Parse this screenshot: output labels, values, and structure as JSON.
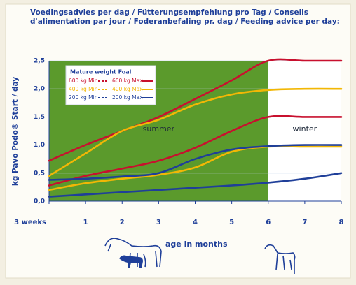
{
  "chart_data": {
    "type": "line",
    "title": "Voedingsadvies per dag / Fütterungsempfehlung pro Tag / Conseils",
    "subtitle": "d'alimentation par jour / Foderanbefaling pr. dag / Feeding advice per day:",
    "y_label": "kg Pavo Podo® Start / day",
    "x_label": "age in months",
    "legend_title": "Mature weight Foal",
    "categories": [
      "3 weeks",
      "1",
      "2",
      "3",
      "4",
      "5",
      "6",
      "7",
      "8"
    ],
    "ylim": [
      0,
      2.5
    ],
    "yticks": [
      {
        "value": 0,
        "label": "0,0"
      },
      {
        "value": 0.5,
        "label": "0,5"
      },
      {
        "value": 1,
        "label": "1,0"
      },
      {
        "value": 1.5,
        "label": "1,5"
      },
      {
        "value": 2,
        "label": "2,0"
      },
      {
        "value": 2.5,
        "label": "2,5"
      }
    ],
    "grid": true,
    "regions": [
      {
        "label": "summer",
        "from": "3 weeks",
        "to": "6",
        "color": "#5b9a2c"
      },
      {
        "label": "winter",
        "from": "6",
        "to": "8",
        "color": "#ffffff"
      }
    ],
    "series": [
      {
        "name": "600 kg Min",
        "color": "#c8102e",
        "values": [
          0.28,
          0.45,
          0.58,
          0.72,
          0.95,
          1.25,
          1.5,
          1.5,
          1.5
        ]
      },
      {
        "name": "600 kg Max",
        "color": "#c8102e",
        "values": [
          0.72,
          1.0,
          1.25,
          1.5,
          1.82,
          2.15,
          2.5,
          2.5,
          2.5
        ]
      },
      {
        "name": "400 kg Min",
        "color": "#f2b705",
        "values": [
          0.2,
          0.32,
          0.4,
          0.47,
          0.6,
          0.88,
          0.97,
          0.97,
          0.97
        ]
      },
      {
        "name": "400 kg Max",
        "color": "#f2b705",
        "values": [
          0.45,
          0.85,
          1.25,
          1.45,
          1.72,
          1.9,
          1.98,
          2.0,
          2.0
        ]
      },
      {
        "name": "200 kg Min",
        "color": "#1f3f99",
        "values": [
          0.08,
          0.12,
          0.16,
          0.2,
          0.24,
          0.28,
          0.33,
          0.4,
          0.5
        ]
      },
      {
        "name": "200 kg Max",
        "color": "#1f3f99",
        "values": [
          0.38,
          0.4,
          0.44,
          0.5,
          0.75,
          0.92,
          0.98,
          1.0,
          1.0
        ]
      }
    ]
  }
}
